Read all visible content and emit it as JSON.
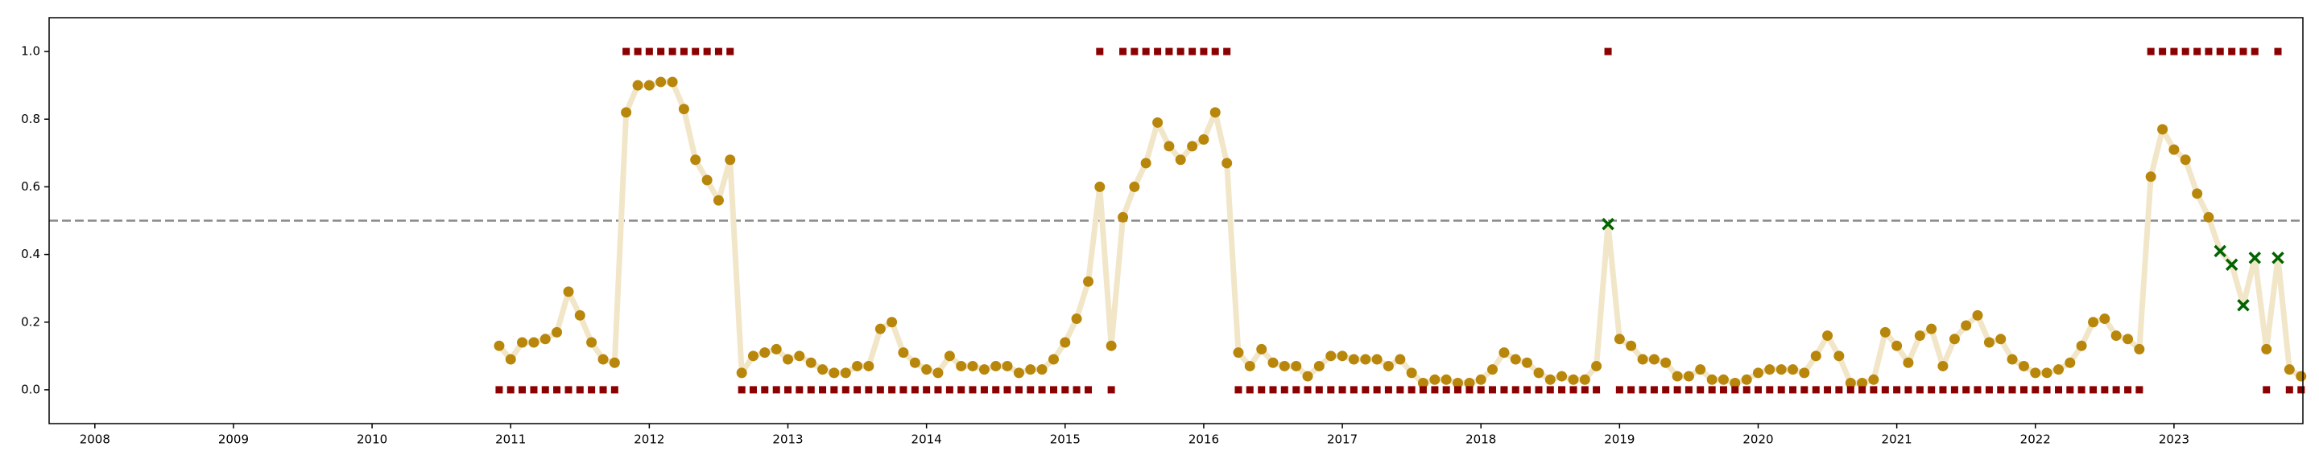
{
  "chart_data": {
    "type": "probability-line",
    "x": [
      2010.917,
      2011,
      2011.083,
      2011.167,
      2011.25,
      2011.333,
      2011.417,
      2011.5,
      2011.583,
      2011.667,
      2011.75,
      2011.833,
      2011.917,
      2012,
      2012.083,
      2012.167,
      2012.25,
      2012.333,
      2012.417,
      2012.5,
      2012.583,
      2012.667,
      2012.75,
      2012.833,
      2012.917,
      2013,
      2013.083,
      2013.167,
      2013.25,
      2013.333,
      2013.417,
      2013.5,
      2013.583,
      2013.667,
      2013.75,
      2013.833,
      2013.917,
      2014,
      2014.083,
      2014.167,
      2014.25,
      2014.333,
      2014.417,
      2014.5,
      2014.583,
      2014.667,
      2014.75,
      2014.833,
      2014.917,
      2015,
      2015.083,
      2015.167,
      2015.25,
      2015.333,
      2015.417,
      2015.5,
      2015.583,
      2015.667,
      2015.75,
      2015.833,
      2015.917,
      2016,
      2016.083,
      2016.167,
      2016.25,
      2016.333,
      2016.417,
      2016.5,
      2016.583,
      2016.667,
      2016.75,
      2016.833,
      2016.917,
      2017,
      2017.083,
      2017.167,
      2017.25,
      2017.333,
      2017.417,
      2017.5,
      2017.583,
      2017.667,
      2017.75,
      2017.833,
      2017.917,
      2018,
      2018.083,
      2018.167,
      2018.25,
      2018.333,
      2018.417,
      2018.5,
      2018.583,
      2018.667,
      2018.75,
      2018.833,
      2018.917,
      2019,
      2019.083,
      2019.167,
      2019.25,
      2019.333,
      2019.417,
      2019.5,
      2019.583,
      2019.667,
      2019.75,
      2019.833,
      2019.917,
      2020,
      2020.083,
      2020.167,
      2020.25,
      2020.333,
      2020.417,
      2020.5,
      2020.583,
      2020.667,
      2020.75,
      2020.833,
      2020.917,
      2021,
      2021.083,
      2021.167,
      2021.25,
      2021.333,
      2021.417,
      2021.5,
      2021.583,
      2021.667,
      2021.75,
      2021.833,
      2021.917,
      2022,
      2022.083,
      2022.167,
      2022.25,
      2022.333,
      2022.417,
      2022.5,
      2022.583,
      2022.667,
      2022.75,
      2022.833,
      2022.917,
      2023,
      2023.083,
      2023.167,
      2023.25,
      2023.333,
      2023.417,
      2023.5,
      2023.583,
      2023.667,
      2023.75,
      2023.833,
      2023.917
    ],
    "values": [
      0.13,
      0.09,
      0.14,
      0.14,
      0.15,
      0.17,
      0.29,
      0.22,
      0.14,
      0.09,
      0.08,
      0.82,
      0.9,
      0.9,
      0.91,
      0.91,
      0.83,
      0.68,
      0.62,
      0.56,
      0.68,
      0.05,
      0.1,
      0.11,
      0.12,
      0.09,
      0.1,
      0.08,
      0.06,
      0.05,
      0.05,
      0.07,
      0.07,
      0.18,
      0.2,
      0.11,
      0.08,
      0.06,
      0.05,
      0.1,
      0.07,
      0.07,
      0.06,
      0.07,
      0.07,
      0.05,
      0.06,
      0.06,
      0.09,
      0.14,
      0.21,
      0.32,
      0.6,
      0.13,
      0.51,
      0.6,
      0.67,
      0.79,
      0.72,
      0.68,
      0.72,
      0.74,
      0.82,
      0.67,
      0.11,
      0.07,
      0.12,
      0.08,
      0.07,
      0.07,
      0.04,
      0.07,
      0.1,
      0.1,
      0.09,
      0.09,
      0.09,
      0.07,
      0.09,
      0.05,
      0.02,
      0.03,
      0.03,
      0.02,
      0.02,
      0.03,
      0.06,
      0.11,
      0.09,
      0.08,
      0.05,
      0.03,
      0.04,
      0.03,
      0.03,
      0.07,
      0.49,
      0.15,
      0.13,
      0.09,
      0.09,
      0.08,
      0.04,
      0.04,
      0.06,
      0.03,
      0.03,
      0.02,
      0.03,
      0.05,
      0.06,
      0.06,
      0.06,
      0.05,
      0.1,
      0.16,
      0.1,
      0.02,
      0.02,
      0.03,
      0.17,
      0.13,
      0.08,
      0.16,
      0.18,
      0.07,
      0.15,
      0.19,
      0.22,
      0.14,
      0.15,
      0.09,
      0.07,
      0.05,
      0.05,
      0.06,
      0.08,
      0.13,
      0.2,
      0.21,
      0.16,
      0.15,
      0.12,
      0.63,
      0.77,
      0.71,
      0.68,
      0.58,
      0.51,
      0.41,
      0.37,
      0.25,
      0.39,
      0.12,
      0.39,
      0.06,
      0.04
    ],
    "labels": [
      0,
      0,
      0,
      0,
      0,
      0,
      0,
      0,
      0,
      0,
      0,
      1,
      1,
      1,
      1,
      1,
      1,
      1,
      1,
      1,
      1,
      0,
      0,
      0,
      0,
      0,
      0,
      0,
      0,
      0,
      0,
      0,
      0,
      0,
      0,
      0,
      0,
      0,
      0,
      0,
      0,
      0,
      0,
      0,
      0,
      0,
      0,
      0,
      0,
      0,
      0,
      0,
      1,
      0,
      1,
      1,
      1,
      1,
      1,
      1,
      1,
      1,
      1,
      1,
      0,
      0,
      0,
      0,
      0,
      0,
      0,
      0,
      0,
      0,
      0,
      0,
      0,
      0,
      0,
      0,
      0,
      0,
      0,
      0,
      0,
      0,
      0,
      0,
      0,
      0,
      0,
      0,
      0,
      0,
      0,
      0,
      1,
      0,
      0,
      0,
      0,
      0,
      0,
      0,
      0,
      0,
      0,
      0,
      0,
      0,
      0,
      0,
      0,
      0,
      0,
      0,
      0,
      0,
      0,
      0,
      0,
      0,
      0,
      0,
      0,
      0,
      0,
      0,
      0,
      0,
      0,
      0,
      0,
      0,
      0,
      0,
      0,
      0,
      0,
      0,
      0,
      0,
      0,
      1,
      1,
      1,
      1,
      1,
      1,
      1,
      1,
      1,
      1,
      0,
      1,
      0,
      0
    ],
    "threshold": 0.5,
    "line_color": "#f2e6c9",
    "point_color": "#b8860b",
    "label_color": "#8b0000",
    "miss_color": "#006400",
    "threshold_color": "#888888",
    "xlim": [
      2007.67,
      2023.93
    ],
    "xticks": [
      2008,
      2009,
      2010,
      2011,
      2012,
      2013,
      2014,
      2015,
      2016,
      2017,
      2018,
      2019,
      2020,
      2021,
      2022,
      2023
    ],
    "ylim": [
      -0.1,
      1.1
    ],
    "yticks": [
      {
        "value": 0,
        "label": "0.0"
      },
      {
        "value": 0.2,
        "label": "0.2"
      },
      {
        "value": 0.4,
        "label": "0.4"
      },
      {
        "value": 0.6,
        "label": "0.6"
      },
      {
        "value": 0.8,
        "label": "0.8"
      },
      {
        "value": 1,
        "label": "1.0"
      }
    ]
  }
}
